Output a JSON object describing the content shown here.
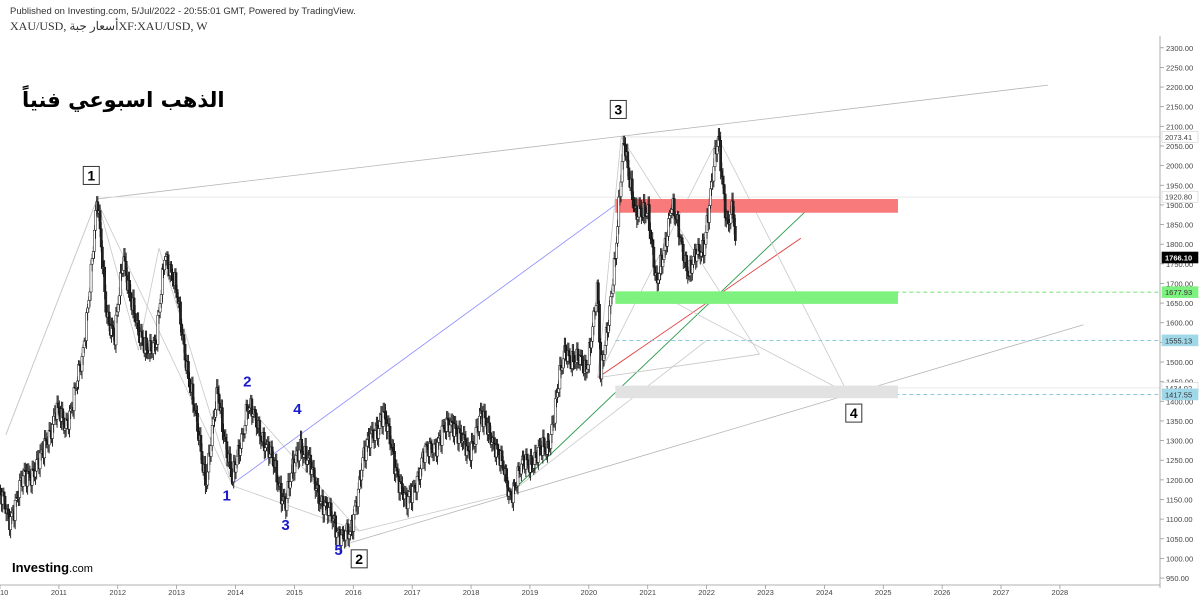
{
  "header": {
    "published": "Published on Investing.com, 5/Jul/2022 - 20:55:01 GMT, Powered by TradingView.",
    "symbol": "XAU/USD, أسعار جبةXF:XAU/USD, W"
  },
  "title_ar": "الذهب اسبوعي فنياً",
  "logo": {
    "brand": "Investing",
    "suffix": ".com"
  },
  "colors": {
    "up": "#ffffff",
    "down": "#222222",
    "red_zone": "#f87a7a",
    "green_zone": "#7ef27e",
    "grey_zone": "#e2e2e2",
    "price_tag": "#000000",
    "blue_tag": "#9fd8e8"
  },
  "chart_data": {
    "type": "candlestick",
    "title": "",
    "timeframe": "W",
    "ylim": [
      940,
      2330
    ],
    "xlim": [
      2010.0,
      2029.7
    ],
    "grid": false,
    "y_ticks": [
      950,
      1000,
      1050,
      1100,
      1150,
      1200,
      1250,
      1300,
      1350,
      1400,
      1450,
      1500,
      1550,
      1600,
      1650,
      1700,
      1750,
      1800,
      1850,
      1900,
      1950,
      2000,
      2050,
      2100,
      2150,
      2200,
      2250,
      2300
    ],
    "x_ticks": [
      "2010",
      "2011",
      "2012",
      "2013",
      "2014",
      "2015",
      "2016",
      "2017",
      "2018",
      "2019",
      "2020",
      "2021",
      "2022",
      "2023",
      "2024",
      "2025",
      "2026",
      "2027",
      "2028"
    ],
    "price_path": [
      [
        2009.95,
        1180
      ],
      [
        2010.15,
        1100
      ],
      [
        2010.4,
        1200
      ],
      [
        2010.7,
        1250
      ],
      [
        2010.95,
        1380
      ],
      [
        2011.1,
        1330
      ],
      [
        2011.4,
        1500
      ],
      [
        2011.65,
        1910
      ],
      [
        2011.8,
        1640
      ],
      [
        2011.95,
        1560
      ],
      [
        2012.1,
        1770
      ],
      [
        2012.35,
        1560
      ],
      [
        2012.65,
        1530
      ],
      [
        2012.8,
        1790
      ],
      [
        2013.0,
        1670
      ],
      [
        2013.3,
        1370
      ],
      [
        2013.5,
        1200
      ],
      [
        2013.7,
        1420
      ],
      [
        2013.95,
        1190
      ],
      [
        2014.2,
        1390
      ],
      [
        2014.5,
        1300
      ],
      [
        2014.85,
        1140
      ],
      [
        2015.1,
        1300
      ],
      [
        2015.4,
        1170
      ],
      [
        2015.7,
        1080
      ],
      [
        2015.95,
        1050
      ],
      [
        2016.15,
        1250
      ],
      [
        2016.5,
        1370
      ],
      [
        2016.9,
        1130
      ],
      [
        2017.2,
        1260
      ],
      [
        2017.7,
        1350
      ],
      [
        2017.95,
        1260
      ],
      [
        2018.15,
        1360
      ],
      [
        2018.4,
        1300
      ],
      [
        2018.65,
        1165
      ],
      [
        2018.9,
        1240
      ],
      [
        2019.3,
        1280
      ],
      [
        2019.6,
        1530
      ],
      [
        2019.95,
        1480
      ],
      [
        2020.15,
        1680
      ],
      [
        2020.2,
        1460
      ],
      [
        2020.45,
        1760
      ],
      [
        2020.6,
        2073
      ],
      [
        2020.8,
        1860
      ],
      [
        2021.0,
        1900
      ],
      [
        2021.15,
        1680
      ],
      [
        2021.4,
        1900
      ],
      [
        2021.7,
        1730
      ],
      [
        2021.95,
        1800
      ],
      [
        2022.2,
        2070
      ],
      [
        2022.35,
        1850
      ],
      [
        2022.45,
        1880
      ],
      [
        2022.5,
        1766
      ]
    ],
    "last_price": "1766.10",
    "price_labels": [
      {
        "value": 2073.41,
        "text": "2073.41",
        "style": "plain"
      },
      {
        "value": 1920.8,
        "text": "1920.80",
        "style": "plain"
      },
      {
        "value": 1766.1,
        "text": "1766.10",
        "style": "black"
      },
      {
        "value": 1677.93,
        "text": "1677.93",
        "style": "green"
      },
      {
        "value": 1555.13,
        "text": "1555.13",
        "style": "blue"
      },
      {
        "value": 1434.02,
        "text": "1434.02",
        "style": "plain"
      },
      {
        "value": 1417.55,
        "text": "1417.55",
        "style": "blue"
      }
    ],
    "zones": [
      {
        "name": "resistance",
        "x0": 2020.45,
        "x1": 2025.25,
        "y0": 1880,
        "y1": 1915,
        "color": "red"
      },
      {
        "name": "support",
        "x0": 2020.45,
        "x1": 2025.25,
        "y0": 1648,
        "y1": 1680,
        "color": "green"
      },
      {
        "name": "target",
        "x0": 2020.45,
        "x1": 2025.25,
        "y0": 1408,
        "y1": 1440,
        "color": "grey"
      }
    ],
    "wave_labels_boxed": [
      {
        "text": "1",
        "x": 2011.55,
        "y": 1975
      },
      {
        "text": "2",
        "x": 2016.1,
        "y": 999
      },
      {
        "text": "3",
        "x": 2020.5,
        "y": 2143
      },
      {
        "text": "4",
        "x": 2024.5,
        "y": 1370
      }
    ],
    "wave_labels_blue": [
      {
        "text": "2",
        "x": 2014.2,
        "y": 1450
      },
      {
        "text": "4",
        "x": 2015.05,
        "y": 1380
      },
      {
        "text": "1",
        "x": 2013.85,
        "y": 1160
      },
      {
        "text": "3",
        "x": 2014.85,
        "y": 1085
      },
      {
        "text": "5",
        "x": 2015.75,
        "y": 1022
      }
    ]
  }
}
